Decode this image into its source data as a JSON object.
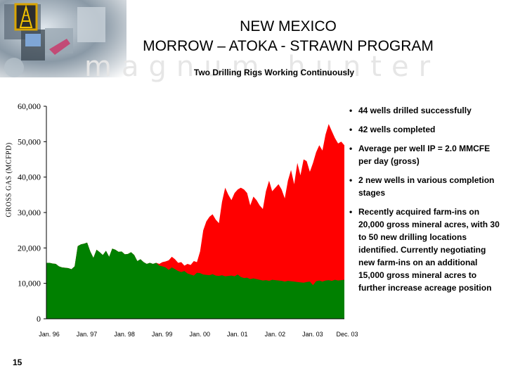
{
  "header": {
    "title_line1": "NEW MEXICO",
    "title_line2": "MORROW – ATOKA - STRAWN PROGRAM",
    "subtitle": "Two Drilling Rigs Working Continuously",
    "watermark": "magnum hunter"
  },
  "bullets": [
    "44 wells drilled successfully",
    "42 wells completed",
    "Average per well IP = 2.0 MMCFE per day (gross)",
    "2 new wells in various completion stages",
    "Recently acquired farm-ins on 20,000 gross mineral acres, with 30 to 50 new drilling locations identified. Currently negotiating new farm-ins on an additional 15,000 gross mineral acres to further increase acreage position"
  ],
  "page_number": "15",
  "colors": {
    "base": "#008000",
    "program": "#ff0000"
  },
  "chart_data": {
    "type": "area",
    "ylabel": "GROSS GAS (MCFPD)",
    "ylim": [
      0,
      60000
    ],
    "yticks": [
      0,
      10000,
      20000,
      30000,
      40000,
      50000,
      60000
    ],
    "ytick_labels": [
      "0",
      "10,000",
      "20,000",
      "30,000",
      "40,000",
      "50,000",
      "60,000"
    ],
    "xlim": [
      0,
      95
    ],
    "xticks": [
      0,
      12,
      24,
      36,
      48,
      60,
      72,
      84,
      95
    ],
    "xtick_labels": [
      "Jan. 96",
      "Jan. 97",
      "Jan. 98",
      "Jan. 99",
      "Jan. 00",
      "Jan. 01",
      "Jan. 02",
      "Jan. 03",
      "Dec. 03"
    ],
    "x": [
      0,
      1,
      2,
      3,
      4,
      5,
      6,
      7,
      8,
      9,
      10,
      11,
      12,
      13,
      14,
      15,
      16,
      17,
      18,
      19,
      20,
      21,
      22,
      23,
      24,
      25,
      26,
      27,
      28,
      29,
      30,
      31,
      32,
      33,
      34,
      35,
      36,
      37,
      38,
      39,
      40,
      41,
      42,
      43,
      44,
      45,
      46,
      47,
      48,
      49,
      50,
      51,
      52,
      53,
      54,
      55,
      56,
      57,
      58,
      59,
      60,
      61,
      62,
      63,
      64,
      65,
      66,
      67,
      68,
      69,
      70,
      71,
      72,
      73,
      74,
      75,
      76,
      77,
      78,
      79,
      80,
      81,
      82,
      83,
      84,
      85,
      86,
      87,
      88,
      89,
      90,
      91,
      92,
      93,
      94,
      95
    ],
    "series": [
      {
        "name": "",
        "color": "#008000",
        "values": [
          15800,
          15800,
          15600,
          15500,
          14800,
          14500,
          14400,
          14300,
          14000,
          14800,
          20500,
          21000,
          21200,
          21500,
          19000,
          17200,
          19500,
          18800,
          18000,
          19200,
          17500,
          19800,
          19500,
          18900,
          19000,
          18200,
          18300,
          18800,
          18000,
          16300,
          16800,
          16000,
          15500,
          15800,
          15500,
          15800,
          15000,
          14800,
          14500,
          13800,
          14500,
          14000,
          13500,
          13200,
          13500,
          12800,
          12500,
          12200,
          13000,
          12900,
          12500,
          12400,
          12300,
          12600,
          12200,
          12100,
          12300,
          12000,
          12100,
          12200,
          12000,
          12500,
          11800,
          11500,
          11600,
          11200,
          11400,
          11200,
          11000,
          10800,
          10900,
          10700,
          11000,
          10900,
          10800,
          10700,
          10500,
          10700,
          10600,
          10500,
          10400,
          10300,
          10200,
          10400,
          10500,
          9500,
          10600,
          10800,
          10500,
          10800,
          10900,
          10700,
          11000,
          10800,
          10900,
          11000
        ]
      },
      {
        "name": "",
        "color": "#ff0000",
        "values": [
          15800,
          15800,
          15600,
          15500,
          14800,
          14500,
          14400,
          14300,
          14000,
          14800,
          20500,
          21000,
          21200,
          21500,
          19000,
          17200,
          19500,
          18800,
          18000,
          19200,
          17500,
          19800,
          19500,
          18900,
          19000,
          18200,
          18300,
          18800,
          18000,
          16300,
          16800,
          16000,
          15500,
          15800,
          15500,
          15800,
          15500,
          16000,
          16200,
          16500,
          17500,
          16800,
          15800,
          16000,
          15000,
          15500,
          15200,
          16300,
          16000,
          19000,
          25000,
          27500,
          28800,
          29500,
          28000,
          27000,
          33000,
          37000,
          35000,
          33500,
          35500,
          36500,
          37000,
          36500,
          35500,
          32000,
          34500,
          33500,
          32000,
          31000,
          36000,
          39000,
          36000,
          37000,
          38000,
          36500,
          34000,
          39000,
          42000,
          38000,
          44000,
          40500,
          45000,
          44500,
          41500,
          44000,
          47000,
          49000,
          47500,
          52000,
          55000,
          53000,
          51000,
          49500,
          50000,
          49000
        ]
      }
    ],
    "grid": false
  }
}
